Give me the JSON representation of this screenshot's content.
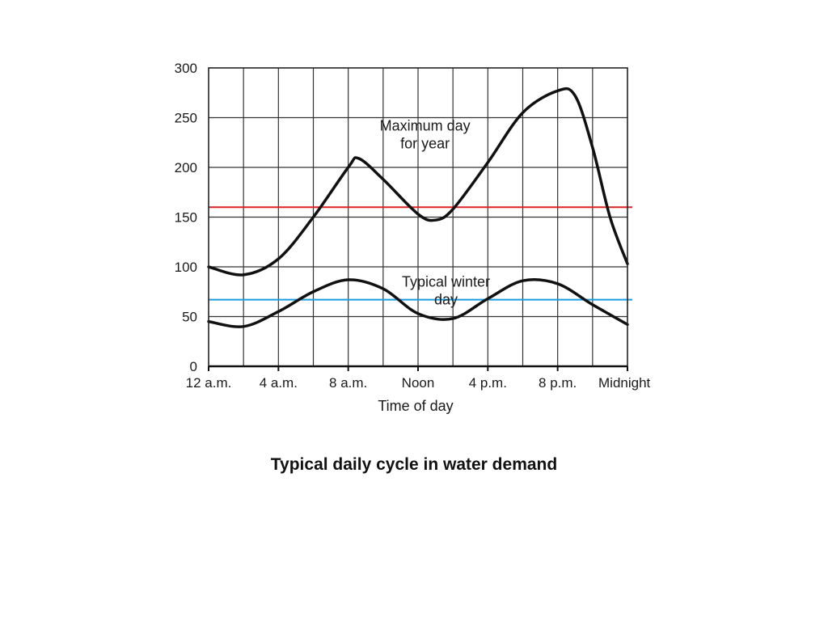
{
  "caption": "Typical daily cycle in water demand",
  "chart_data": {
    "type": "line",
    "xlabel": "Time of day",
    "ylabel": "",
    "xlim": [
      0,
      24
    ],
    "ylim": [
      0,
      300
    ],
    "grid": true,
    "x_ticks": [
      {
        "value": 0,
        "label": "12 a.m."
      },
      {
        "value": 4,
        "label": "4 a.m."
      },
      {
        "value": 8,
        "label": "8 a.m."
      },
      {
        "value": 12,
        "label": "Noon"
      },
      {
        "value": 16,
        "label": "4 p.m."
      },
      {
        "value": 20,
        "label": "8 p.m."
      },
      {
        "value": 24,
        "label": "Midnight"
      }
    ],
    "y_ticks": [
      0,
      50,
      100,
      150,
      200,
      250,
      300
    ],
    "series": [
      {
        "name": "",
        "color": "#111111",
        "x": [
          0,
          2,
          4,
          6,
          8,
          8.6,
          10,
          12,
          13,
          14,
          16,
          18,
          20,
          21,
          22,
          23,
          24
        ],
        "y": [
          100,
          92,
          108,
          150,
          200,
          209,
          188,
          153,
          147,
          158,
          205,
          255,
          277,
          272,
          220,
          150,
          103
        ]
      },
      {
        "name": "",
        "color": "#111111",
        "x": [
          0,
          2,
          4,
          6,
          8,
          10,
          12,
          14,
          16,
          18,
          20,
          22,
          24
        ],
        "y": [
          45,
          40,
          55,
          75,
          87,
          78,
          53,
          48,
          68,
          86,
          83,
          62,
          42
        ]
      }
    ],
    "reference_lines": [
      {
        "y": 160,
        "color": "#dd2222"
      },
      {
        "y": 67,
        "color": "#1a9ee0"
      }
    ],
    "annotations": [
      {
        "lines": [
          "Maximum day",
          "for year"
        ],
        "x": 12.4,
        "y": 237
      },
      {
        "lines": [
          "Typical winter",
          "day"
        ],
        "x": 13.6,
        "y": 80
      }
    ]
  }
}
